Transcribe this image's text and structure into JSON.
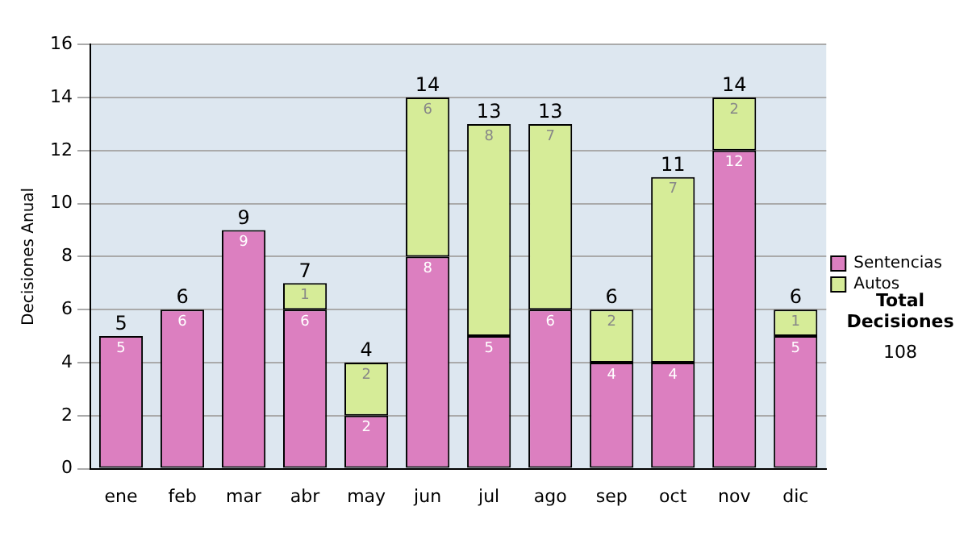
{
  "chart_data": {
    "type": "bar",
    "ylabel": "Decisiones Anual",
    "categories": [
      "ene",
      "feb",
      "mar",
      "abr",
      "may",
      "jun",
      "jul",
      "ago",
      "sep",
      "oct",
      "nov",
      "dic"
    ],
    "series": [
      {
        "name": "Sentencias",
        "color": "#dc7fc0",
        "values": [
          5,
          6,
          9,
          6,
          2,
          8,
          5,
          6,
          4,
          4,
          12,
          5
        ]
      },
      {
        "name": "Autos",
        "color": "#d6ec98",
        "values": [
          null,
          null,
          null,
          1,
          2,
          6,
          8,
          7,
          2,
          7,
          2,
          1
        ]
      }
    ],
    "stacked": true,
    "ylim": [
      0,
      16
    ],
    "yticks": [
      0,
      2,
      4,
      6,
      8,
      10,
      12,
      14,
      16
    ],
    "grid": "y",
    "legend": "right",
    "data_labels": true,
    "totals": [
      "5",
      "6",
      "9",
      "7",
      "4",
      "14",
      "13",
      "13",
      "6",
      "11",
      "14",
      "6"
    ],
    "annotations": [
      "Total Decisiones",
      "108"
    ]
  }
}
